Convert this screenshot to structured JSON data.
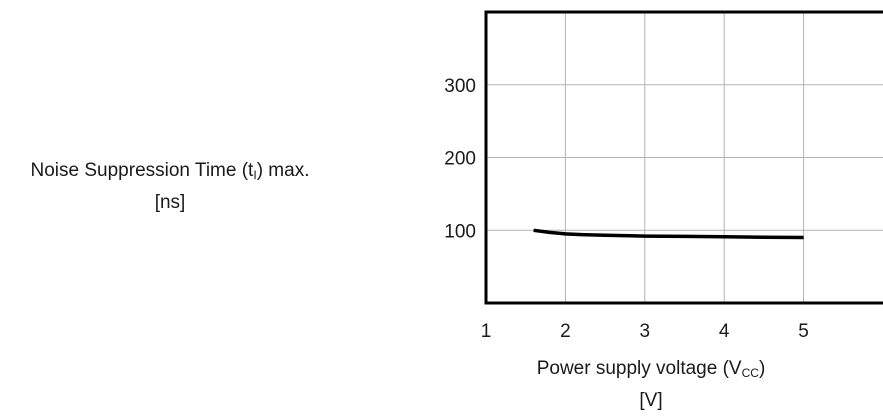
{
  "chart_data": {
    "type": "line",
    "ylabel": {
      "main": "Noise Suppression Time (t",
      "sub": "I",
      "suffix": ") max.",
      "unit": "[ns]"
    },
    "xlabel": {
      "main": "Power supply voltage (V",
      "sub": "CC",
      "suffix": ")",
      "unit": "[V]"
    },
    "xlim": [
      1,
      6
    ],
    "ylim": [
      0,
      400
    ],
    "x_ticks": [
      1,
      2,
      3,
      4,
      5
    ],
    "y_ticks": [
      100,
      200,
      300
    ],
    "x_tick_labels": [
      "1",
      "2",
      "3",
      "4",
      "5"
    ],
    "y_tick_labels": [
      "100",
      "200",
      "300"
    ],
    "grid": true,
    "series": [
      {
        "color": "#000000",
        "x": [
          1.6,
          1.8,
          2.0,
          2.2,
          2.5,
          3.0,
          3.5,
          4.0,
          4.5,
          5.0
        ],
        "y": [
          100,
          97,
          95,
          94,
          93,
          92,
          91.5,
          91,
          90.5,
          90
        ]
      }
    ]
  }
}
